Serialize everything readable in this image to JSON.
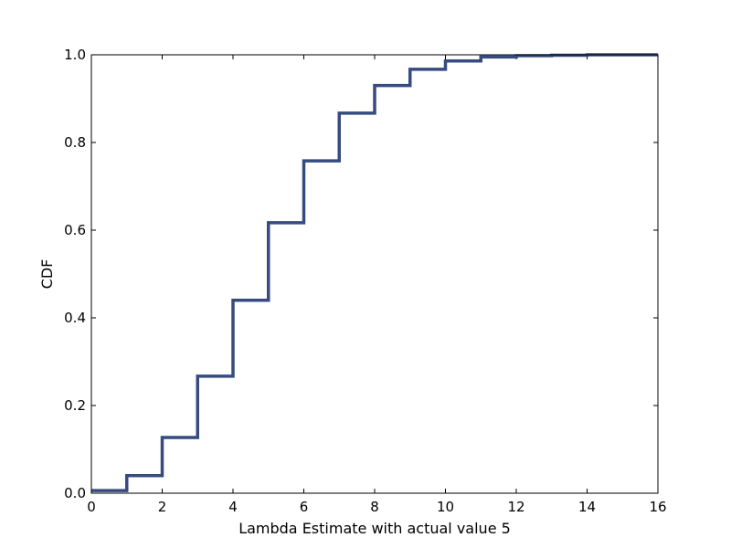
{
  "chart_data": {
    "type": "line",
    "drawstyle": "steps-post",
    "title": "",
    "xlabel": "Lambda Estimate with actual value 5",
    "ylabel": "CDF",
    "xlim": [
      0,
      16
    ],
    "ylim": [
      0,
      1.0
    ],
    "xticks": [
      0,
      2,
      4,
      6,
      8,
      10,
      12,
      14,
      16
    ],
    "yticks": [
      0.0,
      0.2,
      0.4,
      0.6,
      0.8,
      1.0
    ],
    "xtick_labels": [
      "0",
      "2",
      "4",
      "6",
      "8",
      "10",
      "12",
      "14",
      "16"
    ],
    "ytick_labels": [
      "0.0",
      "0.2",
      "0.4",
      "0.6",
      "0.8",
      "1.0"
    ],
    "grid": false,
    "legend": "none",
    "line_color": "#364b7f",
    "series": [
      {
        "x": [
          0,
          1,
          2,
          3,
          4,
          5,
          6,
          7,
          8,
          9,
          10,
          11,
          12,
          13,
          14,
          15,
          16
        ],
        "y": [
          0.006,
          0.04,
          0.127,
          0.267,
          0.44,
          0.617,
          0.758,
          0.867,
          0.93,
          0.967,
          0.986,
          0.995,
          0.998,
          0.999,
          1.0,
          1.0,
          1.0
        ]
      }
    ]
  }
}
